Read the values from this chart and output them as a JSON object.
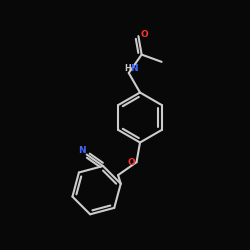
{
  "background_color": "#080808",
  "bond_color": "#cccccc",
  "bond_width": 1.5,
  "N_color": "#4466ff",
  "O_color": "#ff3333",
  "figsize": [
    2.5,
    2.5
  ],
  "dpi": 100,
  "xlim": [
    0,
    10
  ],
  "ylim": [
    0,
    10
  ]
}
